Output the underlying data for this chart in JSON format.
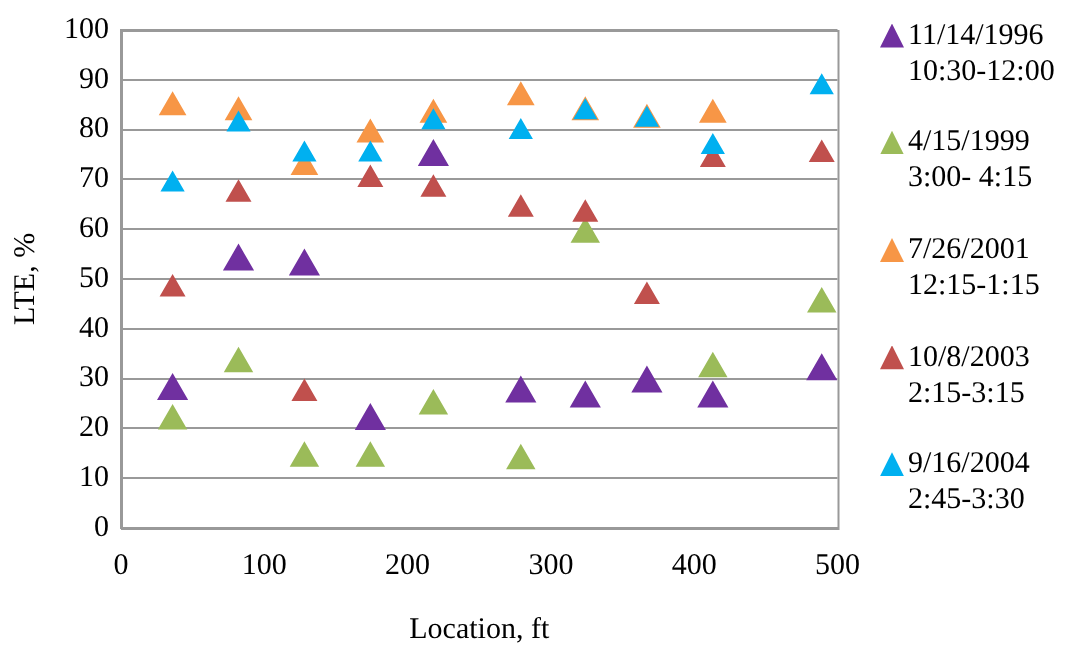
{
  "chart_data": {
    "type": "scatter",
    "xlabel": "Location, ft",
    "ylabel": "LTE, %",
    "x": [
      36,
      82,
      128,
      174,
      218,
      279,
      324,
      367,
      413,
      489
    ],
    "series": [
      {
        "name": "11/14/1996\n10:30-12:00",
        "color": "#7030a0",
        "values": [
          27.5,
          53.5,
          52.5,
          21.5,
          74.5,
          27,
          26,
          29,
          26,
          31.5
        ]
      },
      {
        "name": "4/15/1999\n3:00- 4:15",
        "color": "#9bbb59",
        "values": [
          21.5,
          33,
          14,
          14,
          24.5,
          13.5,
          59,
          null,
          32,
          45
        ]
      },
      {
        "name": "7/26/2001\n12:15-1:15",
        "color": "#f79646",
        "values": [
          84.5,
          83.5,
          72.5,
          79,
          83,
          86.5,
          83.5,
          82,
          83,
          null
        ]
      },
      {
        "name": "10/8/2003\n2:15-3:15",
        "color": "#c0504d",
        "values": [
          48,
          67,
          27,
          70,
          68,
          64,
          63,
          46.5,
          74,
          75
        ]
      },
      {
        "name": "9/16/2004\n2:45-3:30",
        "color": "#00b0f0",
        "values": [
          69,
          81,
          75,
          75,
          81.5,
          79.5,
          83.5,
          82,
          76.5,
          88.5
        ]
      }
    ],
    "xlim": [
      0,
      500
    ],
    "xticks": [
      0,
      100,
      200,
      300,
      400,
      500
    ],
    "ylim": [
      0,
      100
    ],
    "yticks": [
      0,
      10,
      20,
      30,
      40,
      50,
      60,
      70,
      80,
      90,
      100
    ],
    "grid": "y",
    "legend": "right",
    "marker": "triangle"
  }
}
